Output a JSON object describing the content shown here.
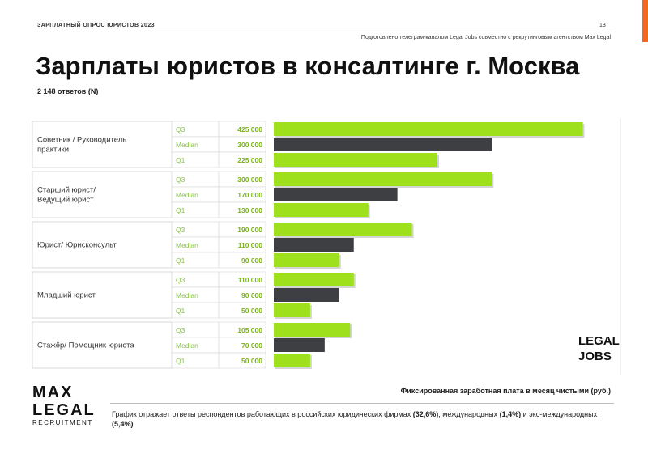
{
  "header": {
    "top_label": "ЗАРПЛАТНЫЙ  ОПРОС ЮРИСТОВ  2023",
    "page_number": "13",
    "prepared_by": "Подготовлено телеграм-каналом  Legal Jobs совместно с рекрутинговым агентством Max Legal"
  },
  "title": "Зарплаты юристов в консалтинге г. Москва",
  "responses_label": "2 148 ответов  (N)",
  "chart_data": {
    "type": "bar",
    "orientation": "horizontal",
    "title": "Зарплаты юристов в консалтинге г. Москва",
    "xlabel": "Фиксированная  заработная  плата в месяц чистыми  (руб.)",
    "ylabel": "",
    "xlim": [
      0,
      450000
    ],
    "stat_labels": [
      "Q3",
      "Median",
      "Q1"
    ],
    "groups": [
      {
        "label": [
          "Советник / Руководитель",
          "практики"
        ],
        "values": [
          425000,
          300000,
          225000
        ],
        "value_labels": [
          "425 000",
          "300 000",
          "225 000"
        ]
      },
      {
        "label": [
          "Старший юрист/",
          "Ведущий юрист"
        ],
        "values": [
          300000,
          170000,
          130000
        ],
        "value_labels": [
          "300 000",
          "170 000",
          "130 000"
        ]
      },
      {
        "label": [
          "Юрист/ Юрисконсульт"
        ],
        "values": [
          190000,
          110000,
          90000
        ],
        "value_labels": [
          "190 000",
          "110 000",
          "90 000"
        ]
      },
      {
        "label": [
          "Младший юрист"
        ],
        "values": [
          110000,
          90000,
          50000
        ],
        "value_labels": [
          "110 000",
          "90 000",
          "50 000"
        ]
      },
      {
        "label": [
          "Стажёр/ Помощник юриста"
        ],
        "values": [
          105000,
          70000,
          50000
        ],
        "value_labels": [
          "105 000",
          "70 000",
          "50 000"
        ]
      }
    ],
    "series_colors": {
      "Q3": "#9fe01c",
      "Median": "#3d3f42",
      "Q1": "#9fe01c"
    }
  },
  "logos": {
    "max_line1": "MAX",
    "max_line2": "LEGAL",
    "max_line3": "RECRUITMENT",
    "legal_jobs_line1": "LEGAL",
    "legal_jobs_line2": "JOBS"
  },
  "footnote": {
    "text_a": "График отражает ответы респондентов  работающих в российских юридических фирмах ",
    "pct_russian": "(32,6%)",
    "text_b": ", международных  ",
    "pct_international": "(1,4%)",
    "text_c": " и экс-международных  ",
    "pct_ex_international": "(5,4%)",
    "text_d": "."
  },
  "colors": {
    "accent": "#9fe01c",
    "dark": "#3d3f42",
    "orange": "#f26a21",
    "value_text": "#7cb518"
  }
}
